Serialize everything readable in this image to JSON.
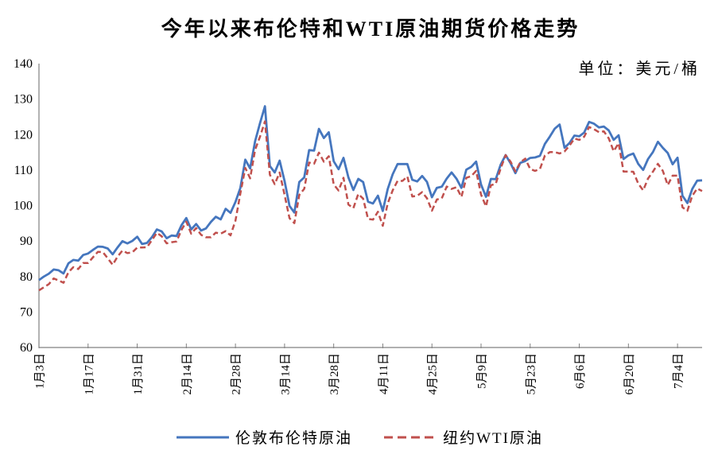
{
  "title": "今年以来布伦特和WTI原油期货价格走势",
  "unit_label": "单位：美元/桶",
  "legend": {
    "brent": "伦敦布伦特原油",
    "wti": "纽约WTI原油"
  },
  "colors": {
    "brent": "#4576BE",
    "wti": "#C0504D",
    "axis": "#808080",
    "text": "#000000",
    "background": "#FFFFFF"
  },
  "chart_data": {
    "type": "line",
    "title": "今年以来布伦特和WTI原油期货价格走势",
    "subtitle": "单位：美元/桶",
    "xlabel": "",
    "ylabel": "美元/桶",
    "ylim": [
      60,
      140
    ],
    "y_ticks": [
      140,
      130,
      120,
      110,
      100,
      90,
      80,
      70,
      60
    ],
    "x_tick_labels": [
      "1月3日",
      "1月17日",
      "1月31日",
      "2月14日",
      "2月28日",
      "3月14日",
      "3月28日",
      "4月11日",
      "4月25日",
      "5月9日",
      "5月23日",
      "6月6日",
      "6月20日",
      "7月4日"
    ],
    "x_tick_interval": 10,
    "grid": false,
    "legend_position": "bottom",
    "series": [
      {
        "name": "伦敦布伦特原油",
        "style": "solid",
        "color": "#4576BE",
        "values": [
          78.98,
          80.0,
          80.8,
          81.99,
          81.75,
          80.87,
          83.72,
          84.67,
          84.47,
          86.06,
          86.48,
          87.51,
          88.44,
          88.38,
          87.89,
          86.27,
          88.2,
          89.96,
          89.34,
          90.03,
          91.21,
          89.16,
          89.47,
          91.11,
          93.27,
          92.69,
          90.78,
          91.55,
          91.41,
          94.44,
          96.48,
          93.28,
          94.81,
          92.97,
          93.54,
          95.39,
          96.84,
          96.1,
          99.08,
          97.93,
          100.99,
          104.97,
          112.93,
          110.46,
          118.11,
          123.21,
          127.98,
          111.14,
          109.33,
          112.67,
          106.9,
          99.91,
          98.02,
          106.64,
          107.93,
          115.62,
          115.48,
          121.6,
          119.03,
          120.65,
          112.48,
          110.23,
          113.45,
          107.91,
          104.39,
          107.53,
          106.64,
          101.07,
          100.58,
          102.78,
          98.48,
          104.64,
          108.78,
          111.7,
          111.7,
          111.7,
          107.25,
          106.8,
          108.33,
          106.65,
          102.32,
          104.99,
          105.32,
          107.59,
          109.34,
          107.58,
          104.97,
          110.14,
          110.9,
          112.39,
          105.94,
          102.46,
          107.51,
          107.45,
          111.55,
          114.24,
          111.93,
          109.11,
          112.04,
          112.55,
          113.42,
          113.56,
          114.03,
          117.4,
          119.43,
          121.67,
          122.84,
          116.29,
          117.61,
          119.72,
          119.51,
          120.57,
          123.58,
          123.07,
          122.01,
          122.27,
          121.17,
          118.51,
          119.81,
          113.12,
          114.13,
          114.65,
          111.74,
          110.05,
          113.12,
          115.09,
          117.98,
          116.26,
          114.81,
          111.63,
          113.5,
          102.77,
          100.69,
          104.65,
          107.02,
          107.1
        ]
      },
      {
        "name": "纽约WTI原油",
        "style": "dashed",
        "color": "#C0504D",
        "values": [
          76.08,
          76.99,
          77.85,
          79.46,
          78.9,
          78.23,
          81.22,
          82.64,
          82.12,
          83.82,
          83.82,
          85.43,
          86.96,
          86.9,
          85.14,
          83.31,
          85.6,
          87.35,
          86.61,
          86.82,
          88.15,
          88.2,
          88.26,
          90.27,
          92.31,
          91.32,
          89.36,
          89.66,
          89.88,
          93.1,
          95.46,
          92.07,
          93.66,
          91.76,
          91.07,
          91.07,
          92.35,
          92.1,
          92.81,
          91.59,
          95.72,
          103.41,
          110.6,
          107.67,
          115.68,
          119.4,
          123.7,
          108.7,
          106.02,
          109.33,
          103.01,
          96.44,
          95.04,
          102.98,
          104.7,
          112.12,
          111.76,
          114.93,
          112.34,
          113.9,
          105.96,
          104.24,
          107.82,
          100.28,
          99.27,
          103.28,
          101.96,
          96.23,
          96.03,
          98.26,
          94.29,
          100.6,
          104.25,
          106.95,
          106.95,
          108.21,
          102.56,
          102.75,
          103.79,
          102.07,
          98.54,
          101.7,
          102.02,
          105.36,
          104.69,
          105.17,
          102.41,
          107.81,
          108.26,
          109.77,
          103.09,
          99.76,
          105.71,
          106.13,
          110.49,
          114.2,
          112.4,
          109.59,
          112.21,
          113.23,
          110.29,
          109.77,
          110.33,
          114.09,
          115.07,
          115.07,
          114.67,
          115.26,
          116.87,
          118.87,
          118.5,
          119.41,
          122.11,
          121.51,
          120.67,
          120.93,
          118.93,
          115.31,
          117.59,
          109.56,
          109.56,
          109.52,
          106.19,
          104.27,
          107.62,
          109.57,
          111.76,
          109.78,
          105.76,
          108.43,
          108.43,
          99.5,
          98.53,
          102.73,
          104.79,
          104.09
        ]
      }
    ]
  }
}
